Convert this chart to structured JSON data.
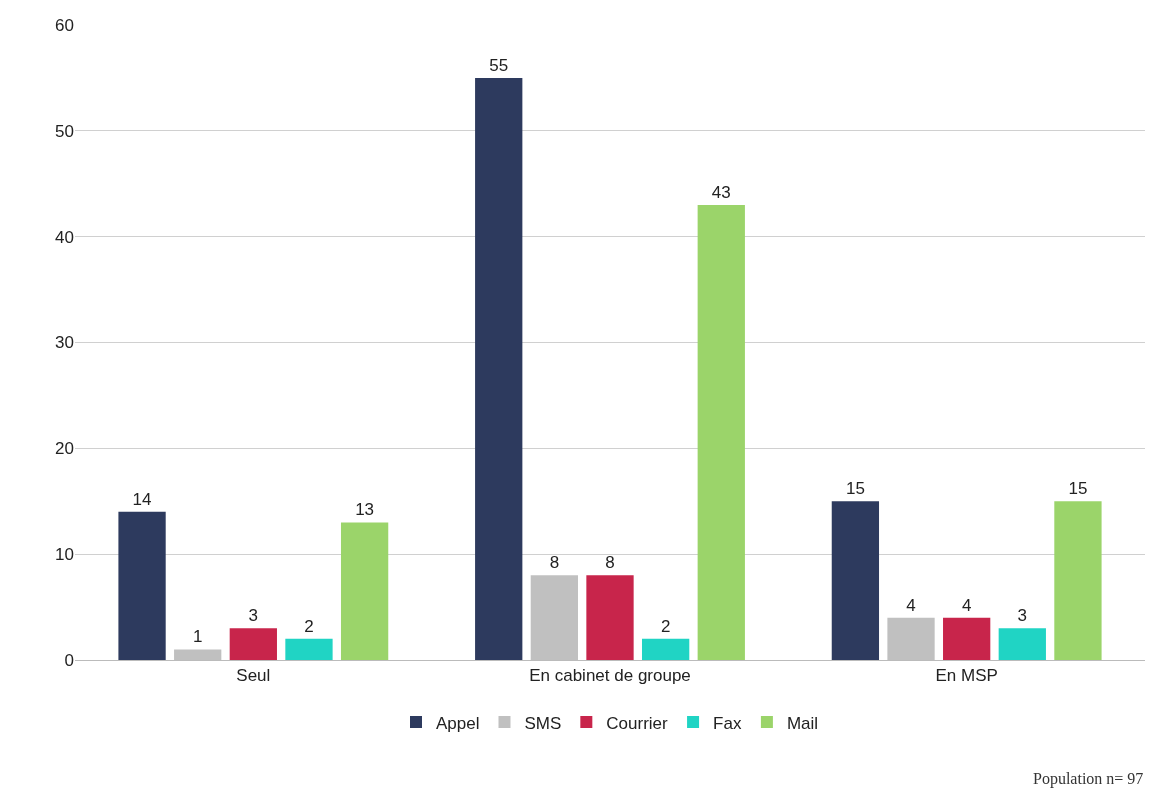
{
  "chart_data": {
    "type": "bar",
    "categories": [
      "Seul",
      "En cabinet de groupe",
      "En MSP"
    ],
    "series": [
      {
        "name": "Appel",
        "color": "#2d3a5e",
        "values": [
          14,
          55,
          15
        ]
      },
      {
        "name": "SMS",
        "color": "#c0c0c0",
        "values": [
          1,
          8,
          4
        ]
      },
      {
        "name": "Courrier",
        "color": "#c8254b",
        "values": [
          3,
          8,
          4
        ]
      },
      {
        "name": "Fax",
        "color": "#20d4c4",
        "values": [
          2,
          2,
          3
        ]
      },
      {
        "name": "Mail",
        "color": "#9bd46a",
        "values": [
          13,
          43,
          15
        ]
      }
    ],
    "ylim": [
      0,
      60
    ],
    "yticks": [
      0,
      10,
      20,
      30,
      40,
      50,
      60
    ],
    "grid": "y",
    "legend": "bottom",
    "data_labels": true,
    "annotations": [
      "Population n= 97"
    ]
  }
}
